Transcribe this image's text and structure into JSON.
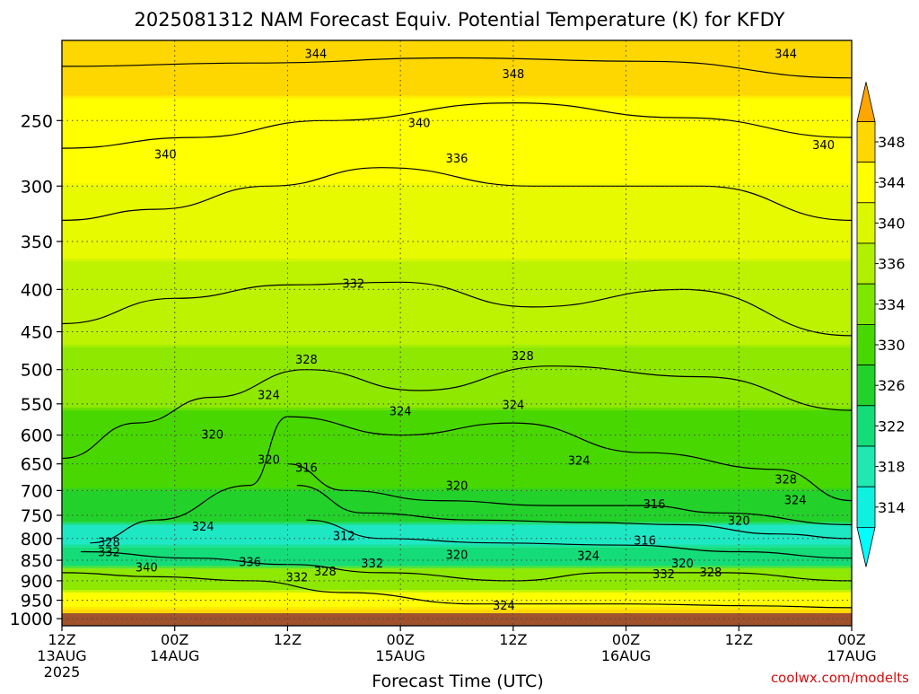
{
  "chart_data": {
    "type": "heatmap",
    "title": "2025081312 NAM Forecast Equiv. Potential Temperature (K) for KFDY",
    "xlabel": "Forecast Time (UTC)",
    "ylabel": "",
    "y_axis": {
      "scale": "log-pressure",
      "reversed": true,
      "ylim": [
        1020,
        200
      ],
      "ticks": [
        250,
        300,
        350,
        400,
        450,
        500,
        550,
        600,
        650,
        700,
        750,
        800,
        850,
        900,
        950,
        1000
      ]
    },
    "x_axis": {
      "xlim_hours": [
        0,
        84
      ],
      "ticks": [
        {
          "hour": 0,
          "line1": "12Z",
          "line2": "13AUG",
          "line3": "2025"
        },
        {
          "hour": 12,
          "line1": "00Z",
          "line2": "14AUG",
          "line3": ""
        },
        {
          "hour": 24,
          "line1": "12Z",
          "line2": "",
          "line3": ""
        },
        {
          "hour": 36,
          "line1": "00Z",
          "line2": "15AUG",
          "line3": ""
        },
        {
          "hour": 48,
          "line1": "12Z",
          "line2": "",
          "line3": ""
        },
        {
          "hour": 60,
          "line1": "00Z",
          "line2": "16AUG",
          "line3": ""
        },
        {
          "hour": 72,
          "line1": "12Z",
          "line2": "",
          "line3": ""
        },
        {
          "hour": 84,
          "line1": "00Z",
          "line2": "17AUG",
          "line3": ""
        }
      ]
    },
    "colorbar": {
      "unit": "K",
      "labels": [
        348,
        344,
        340,
        336,
        334,
        330,
        326,
        322,
        318,
        314
      ],
      "bands": [
        {
          "color": "#ffd700"
        },
        {
          "color": "#ffff00"
        },
        {
          "color": "#dcf800"
        },
        {
          "color": "#b0ef00"
        },
        {
          "color": "#7ee600"
        },
        {
          "color": "#48d800"
        },
        {
          "color": "#22d22a"
        },
        {
          "color": "#14dc78"
        },
        {
          "color": "#20e8b0"
        },
        {
          "color": "#10f0e0"
        }
      ]
    },
    "zones": [
      {
        "pmax": 235,
        "value": 347,
        "color": "#ffd700"
      },
      {
        "pmax": 300,
        "value": 341,
        "color": "#ffff00"
      },
      {
        "pmax": 370,
        "value": 338,
        "color": "#e8fa00"
      },
      {
        "pmax": 470,
        "value": 335,
        "color": "#bdf200"
      },
      {
        "pmax": 560,
        "value": 332,
        "color": "#8ee800"
      },
      {
        "pmax": 700,
        "value": 328,
        "color": "#48d800"
      },
      {
        "pmax": 770,
        "value": 324,
        "color": "#22d22a"
      },
      {
        "pmax": 820,
        "value": 318,
        "color": "#1ee8c4"
      },
      {
        "pmax": 870,
        "value": 322,
        "color": "#14dc78"
      },
      {
        "pmax": 930,
        "value": 330,
        "color": "#8ee800"
      },
      {
        "pmax": 975,
        "value": 338,
        "color": "#ffff00"
      },
      {
        "pmax": 1020,
        "value": 346,
        "color": "#ffd700"
      }
    ],
    "isotherms": [
      {
        "value": 344,
        "points": [
          [
            0,
            215
          ],
          [
            20,
            213
          ],
          [
            42,
            210
          ],
          [
            62,
            212
          ],
          [
            84,
            222
          ]
        ]
      },
      {
        "value": 340,
        "points": [
          [
            0,
            270
          ],
          [
            14,
            262
          ],
          [
            28,
            250
          ],
          [
            48,
            238
          ],
          [
            66,
            248
          ],
          [
            84,
            262
          ]
        ]
      },
      {
        "value": 336,
        "points": [
          [
            0,
            330
          ],
          [
            10,
            320
          ],
          [
            22,
            300
          ],
          [
            34,
            285
          ],
          [
            50,
            300
          ],
          [
            68,
            300
          ],
          [
            84,
            330
          ]
        ]
      },
      {
        "value": 332,
        "points": [
          [
            0,
            440
          ],
          [
            12,
            410
          ],
          [
            24,
            395
          ],
          [
            36,
            392
          ],
          [
            50,
            420
          ],
          [
            66,
            400
          ],
          [
            84,
            455
          ]
        ]
      },
      {
        "value": 328,
        "points": [
          [
            0,
            640
          ],
          [
            8,
            580
          ],
          [
            16,
            540
          ],
          [
            26,
            500
          ],
          [
            38,
            530
          ],
          [
            52,
            495
          ],
          [
            68,
            510
          ],
          [
            84,
            560
          ]
        ]
      },
      {
        "value": 324,
        "points": [
          [
            3,
            810
          ],
          [
            10,
            760
          ],
          [
            20,
            690
          ],
          [
            24,
            570
          ],
          [
            36,
            600
          ],
          [
            48,
            580
          ],
          [
            62,
            630
          ],
          [
            76,
            660
          ],
          [
            84,
            720
          ]
        ]
      },
      {
        "value": 320,
        "points": [
          [
            24,
            650
          ],
          [
            30,
            700
          ],
          [
            40,
            720
          ],
          [
            52,
            730
          ],
          [
            62,
            730
          ],
          [
            70,
            745
          ],
          [
            84,
            770
          ]
        ]
      },
      {
        "value": 316,
        "points": [
          [
            25,
            690
          ],
          [
            32,
            745
          ],
          [
            44,
            760
          ],
          [
            56,
            765
          ],
          [
            66,
            770
          ],
          [
            76,
            790
          ],
          [
            84,
            800
          ]
        ]
      },
      {
        "value": 312,
        "points": [
          [
            26,
            760
          ],
          [
            34,
            800
          ],
          [
            46,
            810
          ],
          [
            60,
            815
          ],
          [
            72,
            830
          ],
          [
            84,
            845
          ]
        ]
      },
      {
        "value": 328,
        "points": [
          [
            2,
            830
          ],
          [
            14,
            845
          ],
          [
            24,
            860
          ],
          [
            34,
            880
          ],
          [
            48,
            900
          ],
          [
            58,
            880
          ],
          [
            70,
            880
          ],
          [
            84,
            900
          ]
        ]
      },
      {
        "value": 336,
        "points": [
          [
            0,
            880
          ],
          [
            10,
            890
          ],
          [
            20,
            900
          ],
          [
            30,
            930
          ],
          [
            44,
            960
          ],
          [
            60,
            960
          ],
          [
            74,
            965
          ],
          [
            84,
            970
          ]
        ]
      }
    ],
    "contour_labels": [
      {
        "text": "344",
        "hour": 27,
        "p": 208
      },
      {
        "text": "348",
        "hour": 48,
        "p": 220
      },
      {
        "text": "344",
        "hour": 77,
        "p": 208
      },
      {
        "text": "340",
        "hour": 11,
        "p": 275
      },
      {
        "text": "340",
        "hour": 38,
        "p": 252
      },
      {
        "text": "340",
        "hour": 81,
        "p": 268
      },
      {
        "text": "336",
        "hour": 42,
        "p": 278
      },
      {
        "text": "332",
        "hour": 31,
        "p": 394
      },
      {
        "text": "328",
        "hour": 26,
        "p": 487
      },
      {
        "text": "328",
        "hour": 49,
        "p": 482
      },
      {
        "text": "324",
        "hour": 22,
        "p": 537
      },
      {
        "text": "324",
        "hour": 36,
        "p": 562
      },
      {
        "text": "324",
        "hour": 48,
        "p": 552
      },
      {
        "text": "324",
        "hour": 55,
        "p": 645
      },
      {
        "text": "320",
        "hour": 16,
        "p": 600
      },
      {
        "text": "320",
        "hour": 22,
        "p": 643
      },
      {
        "text": "316",
        "hour": 26,
        "p": 658
      },
      {
        "text": "320",
        "hour": 42,
        "p": 692
      },
      {
        "text": "316",
        "hour": 63,
        "p": 728
      },
      {
        "text": "328",
        "hour": 77,
        "p": 680
      },
      {
        "text": "324",
        "hour": 78,
        "p": 720
      },
      {
        "text": "320",
        "hour": 72,
        "p": 762
      },
      {
        "text": "312",
        "hour": 30,
        "p": 795
      },
      {
        "text": "320",
        "hour": 42,
        "p": 838
      },
      {
        "text": "316",
        "hour": 62,
        "p": 805
      },
      {
        "text": "324",
        "hour": 56,
        "p": 840
      },
      {
        "text": "320",
        "hour": 66,
        "p": 858
      },
      {
        "text": "332",
        "hour": 33,
        "p": 858
      },
      {
        "text": "328",
        "hour": 28,
        "p": 878
      },
      {
        "text": "332",
        "hour": 25,
        "p": 892
      },
      {
        "text": "332",
        "hour": 64,
        "p": 885
      },
      {
        "text": "328",
        "hour": 69,
        "p": 880
      },
      {
        "text": "328",
        "hour": 5,
        "p": 810
      },
      {
        "text": "332",
        "hour": 5,
        "p": 832
      },
      {
        "text": "340",
        "hour": 9,
        "p": 868
      },
      {
        "text": "324",
        "hour": 15,
        "p": 775
      },
      {
        "text": "336",
        "hour": 20,
        "p": 855
      },
      {
        "text": "324",
        "hour": 47,
        "p": 965
      }
    ],
    "terrain": {
      "p_top": 985,
      "color": "#a0522d"
    },
    "grid": true
  },
  "footer": {
    "credit": "coolwx.com/modelts"
  }
}
